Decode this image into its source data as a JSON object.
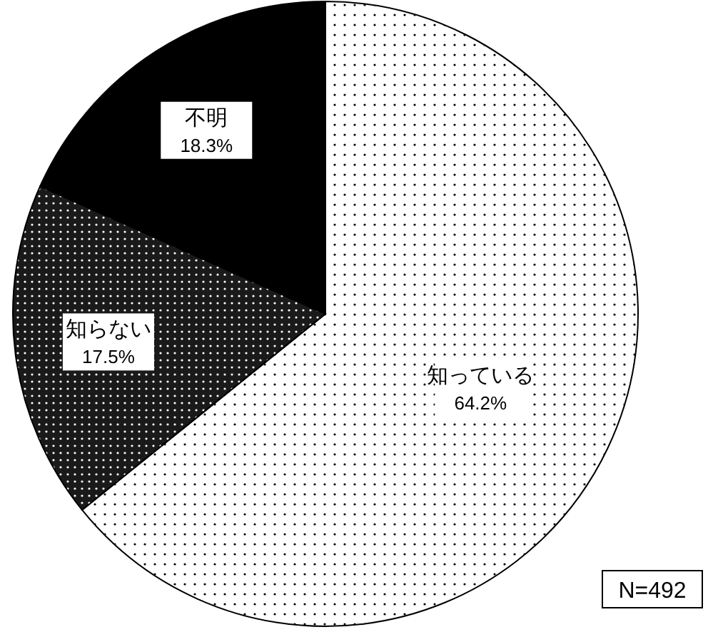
{
  "chart_data": {
    "type": "pie",
    "categories": [
      "知っている",
      "知らない",
      "不明"
    ],
    "values": [
      64.2,
      17.5,
      18.3
    ],
    "value_labels": [
      "64.2%",
      "17.5%",
      "18.3%"
    ],
    "colors": [
      "#ffffff",
      "#1a1a1a",
      "#000000"
    ],
    "annotations": [
      "N=492"
    ]
  }
}
